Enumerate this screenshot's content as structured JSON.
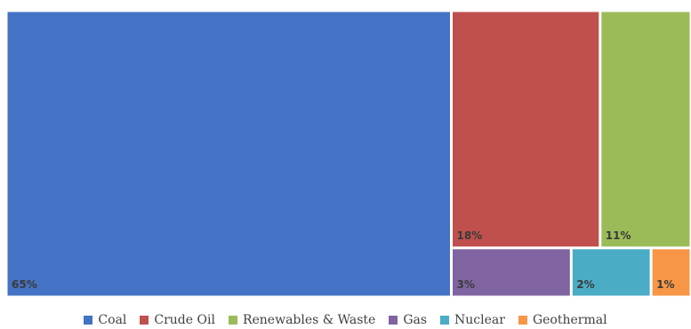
{
  "chart_data": {
    "type": "treemap",
    "title": "",
    "unit": "%",
    "items": [
      {
        "name": "Coal",
        "value": 65,
        "label": "65%",
        "color": "#4472C4"
      },
      {
        "name": "Crude Oil",
        "value": 18,
        "label": "18%",
        "color": "#C0504D"
      },
      {
        "name": "Renewables & Waste",
        "value": 11,
        "label": "11%",
        "color": "#9BBB59"
      },
      {
        "name": "Gas",
        "value": 3,
        "label": "3%",
        "color": "#8064A2"
      },
      {
        "name": "Nuclear",
        "value": 2,
        "label": "2%",
        "color": "#4BACC6"
      },
      {
        "name": "Geothermal",
        "value": 1,
        "label": "1%",
        "color": "#F79646"
      }
    ],
    "legend_position": "bottom"
  }
}
